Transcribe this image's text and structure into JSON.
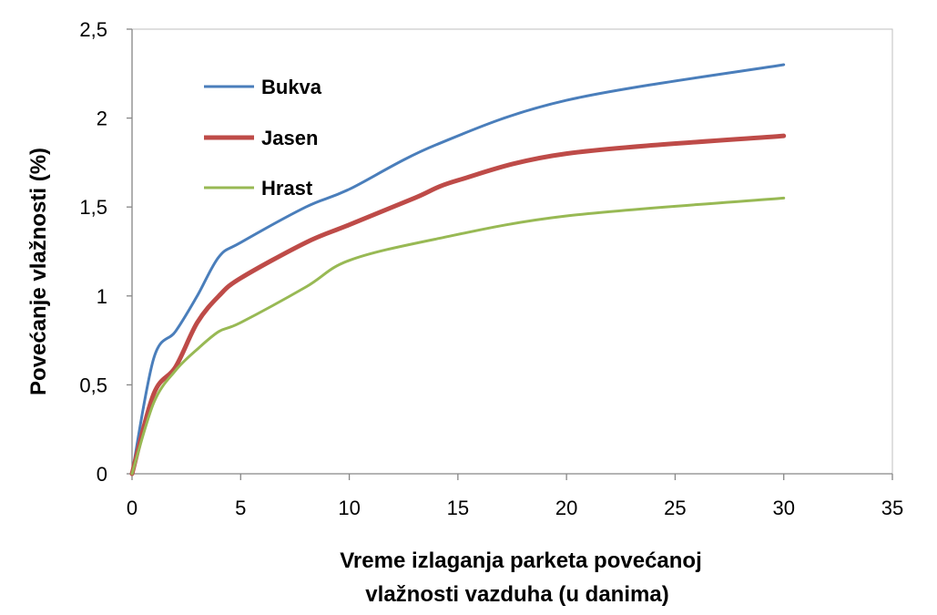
{
  "chart_data": {
    "type": "line",
    "title": "",
    "xlabel_lines": [
      "Vreme izlaganja parketa povećanoj",
      "vlažnosti vazduha (u danima)"
    ],
    "ylabel": "Povećanje vlažnosti (%)",
    "xlim": [
      0,
      35
    ],
    "ylim": [
      0,
      2.5
    ],
    "x_ticks": [
      "0",
      "5",
      "10",
      "15",
      "20",
      "25",
      "30",
      "35"
    ],
    "y_ticks": [
      "0",
      "0,5",
      "1",
      "1,5",
      "2",
      "2,5"
    ],
    "grid": false,
    "legend_position": "top-left",
    "series": [
      {
        "name": "Bukva",
        "color": "#4a7ebb",
        "points": [
          [
            0,
            0
          ],
          [
            1,
            0.65
          ],
          [
            2,
            0.8
          ],
          [
            3,
            1.0
          ],
          [
            4,
            1.22
          ],
          [
            5,
            1.3
          ],
          [
            8,
            1.5
          ],
          [
            10,
            1.6
          ],
          [
            14,
            1.85
          ],
          [
            20,
            2.1
          ],
          [
            30,
            2.3
          ]
        ]
      },
      {
        "name": "Jasen",
        "color": "#be4b48",
        "points": [
          [
            0,
            0
          ],
          [
            1,
            0.45
          ],
          [
            2,
            0.6
          ],
          [
            3,
            0.85
          ],
          [
            4,
            1.0
          ],
          [
            5,
            1.1
          ],
          [
            8,
            1.3
          ],
          [
            10,
            1.4
          ],
          [
            13,
            1.55
          ],
          [
            15,
            1.65
          ],
          [
            20,
            1.8
          ],
          [
            30,
            1.9
          ]
        ]
      },
      {
        "name": "Hrast",
        "color": "#98b954",
        "points": [
          [
            0,
            0
          ],
          [
            1,
            0.4
          ],
          [
            2,
            0.58
          ],
          [
            3,
            0.7
          ],
          [
            4,
            0.8
          ],
          [
            5,
            0.85
          ],
          [
            8,
            1.05
          ],
          [
            10,
            1.2
          ],
          [
            14,
            1.32
          ],
          [
            20,
            1.45
          ],
          [
            30,
            1.55
          ]
        ]
      }
    ]
  }
}
